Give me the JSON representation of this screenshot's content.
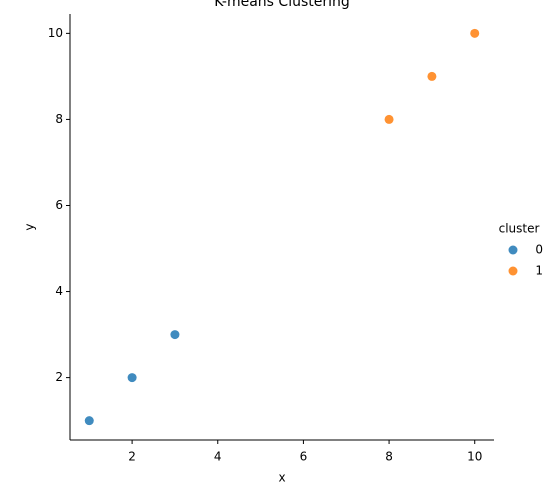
{
  "chart_data": {
    "type": "scatter",
    "title": "K-means Clustering",
    "x_label": "x",
    "y_label": "y",
    "legend_title": "cluster",
    "legend_position": "right",
    "series": [
      {
        "name": "0",
        "color": "#1f77b4",
        "x": [
          1,
          2,
          3
        ],
        "values": [
          1,
          2,
          3
        ]
      },
      {
        "name": "1",
        "color": "#ff7f0e",
        "x": [
          8,
          9,
          10
        ],
        "values": [
          8,
          9,
          10
        ]
      }
    ],
    "xlim": [
      0.55,
      10.45
    ],
    "xticks": [
      2,
      4,
      6,
      8,
      10
    ],
    "ylim": [
      0.55,
      10.45
    ],
    "yticks": [
      2,
      4,
      6,
      8,
      10
    ],
    "grid": false
  }
}
